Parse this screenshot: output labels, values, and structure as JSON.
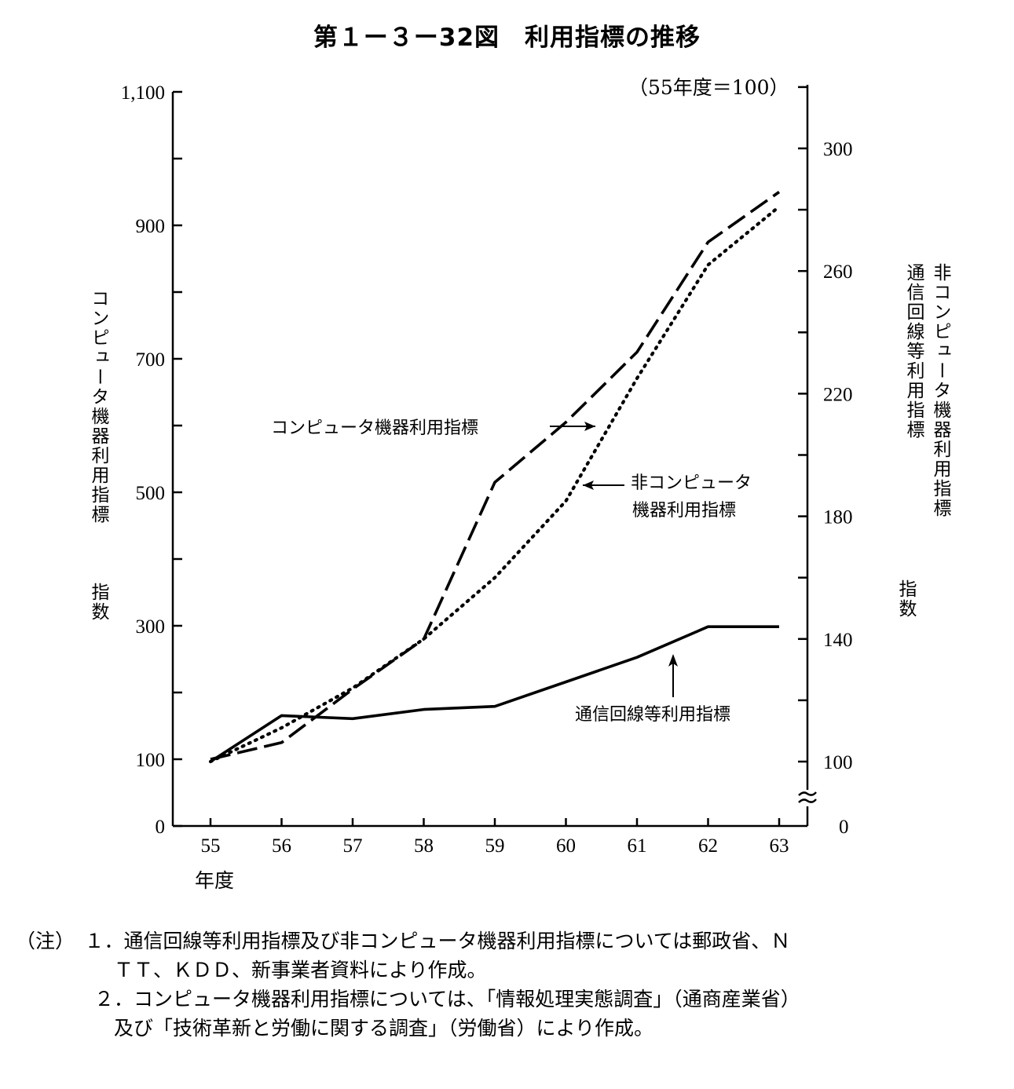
{
  "title": "第１ー３ー32図　利用指標の推移",
  "base_note": "（55年度＝100）",
  "chart_data": {
    "type": "line",
    "x": [
      "55",
      "56",
      "57",
      "58",
      "59",
      "60",
      "61",
      "62",
      "63"
    ],
    "xlabel": "年度",
    "y_left": {
      "label": "コンピュータ機器利用指標",
      "unit": "指数",
      "ylim": [
        0,
        1100
      ],
      "ticks": [
        0,
        100,
        300,
        500,
        700,
        900,
        1100
      ],
      "tick_labels": [
        "0",
        "100",
        "300",
        "500",
        "700",
        "900",
        "1,100"
      ]
    },
    "y_right": {
      "label_line1": "非コンピュータ機器利用指標",
      "label_line2": "通信回線等利用指標",
      "unit": "指数",
      "ylim": [
        100,
        320
      ],
      "ticks": [
        100,
        140,
        180,
        220,
        260,
        300
      ],
      "tick_labels": [
        "100",
        "140",
        "180",
        "220",
        "260",
        "300"
      ],
      "zero_label": "0",
      "axis_break": true
    },
    "series": [
      {
        "name": "コンピュータ機器利用指標",
        "axis": "left",
        "style": "dashed",
        "values": [
          100,
          125,
          205,
          280,
          515,
          605,
          710,
          875,
          950
        ]
      },
      {
        "name": "非コンピュータ機器利用指標",
        "axis": "right",
        "style": "dotted",
        "values": [
          100,
          111,
          124,
          140,
          160,
          185,
          225,
          262,
          281
        ]
      },
      {
        "name": "通信回線等利用指標",
        "axis": "right",
        "style": "solid",
        "values": [
          100,
          115,
          114,
          117,
          118,
          126,
          134,
          144,
          144
        ]
      }
    ],
    "annotations": {
      "computer": "コンピュータ機器利用指標",
      "noncomputer_line1": "非コンピュータ",
      "noncomputer_line2": "機器利用指標",
      "comm": "通信回線等利用指標"
    }
  },
  "notes": [
    "（注）　１．通信回線等利用指標及び非コンピュータ機器利用指標については郵政省、Ｎ",
    "　　　　　ＴＴ、ＫＤＤ、新事業者資料により作成。",
    "　　　　２．コンピュータ機器利用指標については、「情報処理実態調査」（通商産業省）",
    "　　　　　及び「技術革新と労働に関する調査」（労働省）により作成。"
  ]
}
